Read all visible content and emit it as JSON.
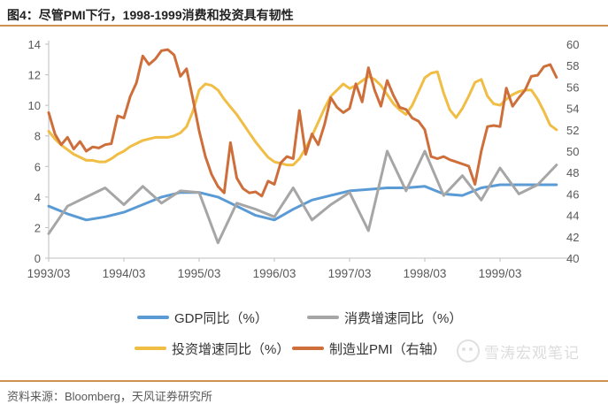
{
  "title": "图4：尽管PMI下行，1998-1999消费和投资具有韧性",
  "source": "资料来源：Bloomberg，天风证券研究所",
  "watermark": "雪涛宏观笔记",
  "colors": {
    "accent_rule": "#cd9150",
    "axis_line": "#bfbfbf",
    "tick_label": "#595959",
    "gdp_blue": "#5b9bd5",
    "consumption_gray": "#a6a6a6",
    "investment_yellow": "#f0bd45",
    "pmi_orange": "#ce6f3b"
  },
  "chart_data": {
    "type": "line",
    "title": "图4：尽管PMI下行，1998-1999消费和投资具有韧性",
    "x_start": "1993/03",
    "x_end": "1999/12",
    "x_tick_labels": [
      "1993/03",
      "1994/03",
      "1995/03",
      "1996/03",
      "1997/03",
      "1998/03",
      "1999/03"
    ],
    "left_axis": {
      "min": 0,
      "max": 14,
      "step": 2
    },
    "right_axis": {
      "min": 40,
      "max": 60,
      "step": 2
    },
    "grid": false,
    "legend_position": "bottom",
    "series": [
      {
        "name": "GDP同比（%）",
        "axis": "left",
        "color": "#5b9bd5",
        "frequency": "quarterly",
        "values": [
          3.4,
          2.9,
          2.5,
          2.7,
          3.0,
          3.5,
          4.0,
          4.3,
          4.3,
          4.0,
          3.4,
          2.8,
          2.5,
          3.2,
          3.8,
          4.1,
          4.4,
          4.5,
          4.6,
          4.6,
          4.7,
          4.2,
          4.1,
          4.6,
          4.8,
          4.8,
          4.8,
          4.8
        ]
      },
      {
        "name": "消费增速同比（%）",
        "axis": "left",
        "color": "#a6a6a6",
        "frequency": "quarterly",
        "values": [
          1.6,
          3.4,
          4.0,
          4.6,
          3.5,
          4.7,
          3.6,
          4.4,
          4.3,
          1.0,
          3.6,
          3.2,
          2.7,
          4.6,
          2.5,
          3.5,
          4.3,
          1.8,
          7.0,
          4.4,
          7.0,
          4.1,
          5.4,
          3.8,
          5.9,
          4.2,
          4.8,
          6.1
        ]
      },
      {
        "name": "投资增速同比（%）",
        "axis": "left",
        "color": "#f0bd45",
        "frequency": "monthly",
        "values": [
          8.3,
          7.8,
          7.4,
          7.1,
          6.8,
          6.6,
          6.4,
          6.4,
          6.3,
          6.3,
          6.5,
          6.8,
          7.0,
          7.3,
          7.5,
          7.7,
          7.8,
          7.9,
          7.9,
          7.9,
          8.0,
          8.2,
          8.6,
          9.6,
          11.0,
          11.4,
          11.3,
          11.0,
          10.4,
          9.9,
          9.4,
          8.8,
          8.2,
          7.6,
          7.1,
          6.6,
          6.3,
          6.2,
          6.1,
          6.1,
          6.5,
          7.2,
          8.0,
          8.9,
          9.8,
          10.6,
          11.0,
          11.4,
          11.1,
          11.3,
          11.6,
          11.9,
          11.7,
          11.3,
          10.7,
          10.1,
          9.7,
          9.4,
          10.0,
          10.9,
          11.8,
          12.1,
          12.2,
          10.8,
          9.7,
          9.2,
          9.8,
          10.6,
          11.5,
          11.7,
          10.6,
          10.1,
          10.0,
          10.4,
          10.7,
          10.9,
          11.0,
          11.0,
          10.4,
          9.6,
          8.7,
          8.4
        ]
      },
      {
        "name": "制造业PMI（右轴）",
        "axis": "right",
        "color": "#ce6f3b",
        "frequency": "monthly",
        "values": [
          53.6,
          51.6,
          50.6,
          51.3,
          50.2,
          50.9,
          50.0,
          50.4,
          50.3,
          50.6,
          50.7,
          53.3,
          53.1,
          55.1,
          56.4,
          58.9,
          58.1,
          58.6,
          59.4,
          59.5,
          59.0,
          57.0,
          57.7,
          54.9,
          51.9,
          49.5,
          47.8,
          46.7,
          46.1,
          50.8,
          47.5,
          46.5,
          46.1,
          46.2,
          45.8,
          47.2,
          46.9,
          48.9,
          49.5,
          49.3,
          53.8,
          49.7,
          51.6,
          50.6,
          52.5,
          55.0,
          54.1,
          53.6,
          54.0,
          56.3,
          54.6,
          57.8,
          55.7,
          54.2,
          56.6,
          55.2,
          54.1,
          53.9,
          53.1,
          52.8,
          52.0,
          49.5,
          49.3,
          49.5,
          49.2,
          49.0,
          48.8,
          48.6,
          46.9,
          50.0,
          52.3,
          52.4,
          52.3,
          55.9,
          54.2,
          55.0,
          55.7,
          57.0,
          57.1,
          57.9,
          58.1,
          56.9
        ]
      }
    ]
  },
  "legend": {
    "row1": [
      {
        "label": "GDP同比（%）"
      },
      {
        "label": "消费增速同比（%）"
      }
    ],
    "row2": [
      {
        "label": "投资增速同比（%）"
      },
      {
        "label": "制造业PMI（右轴）"
      }
    ]
  }
}
